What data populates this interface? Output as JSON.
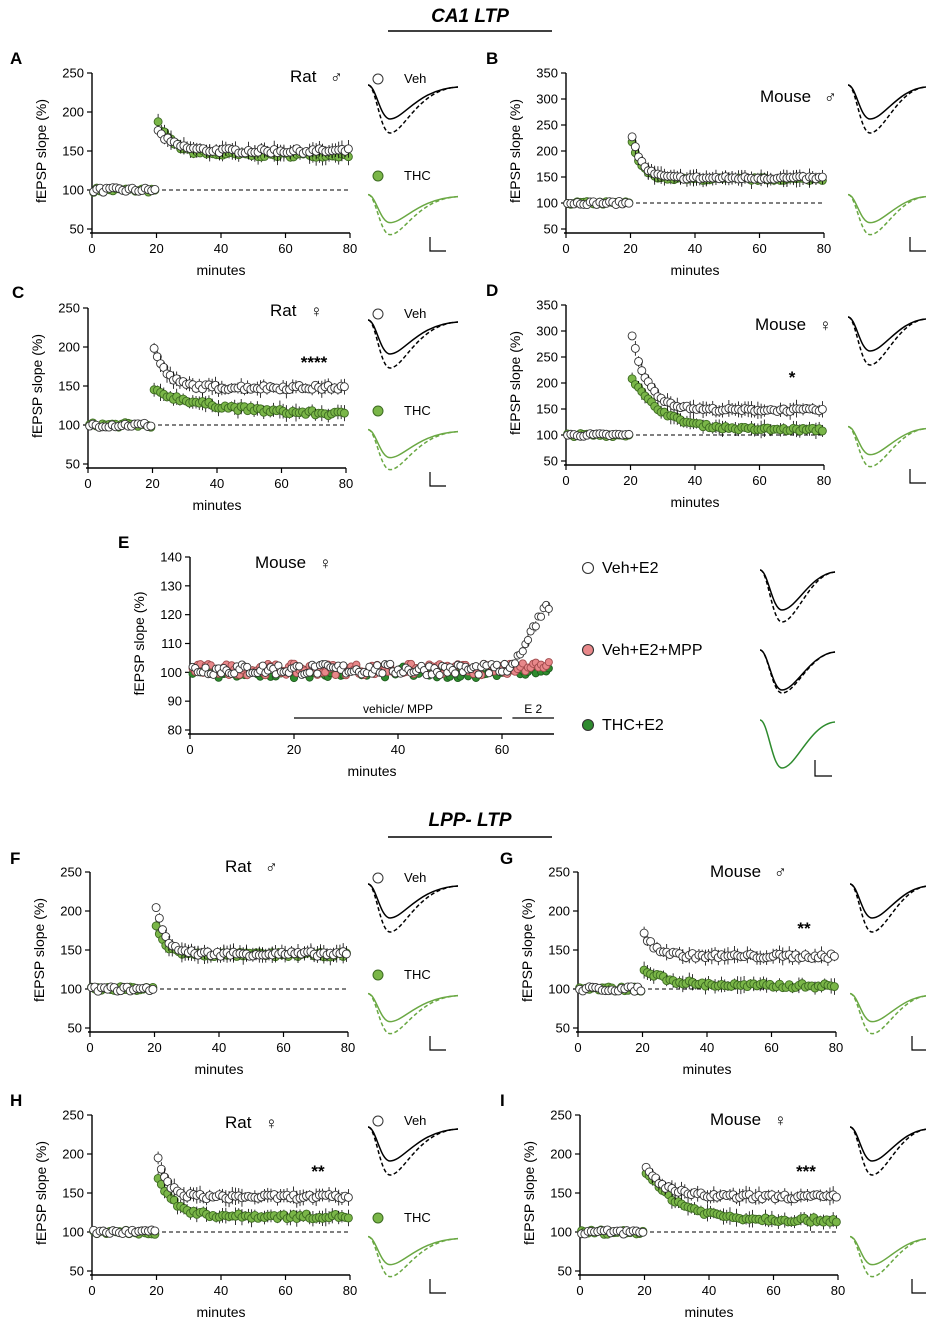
{
  "sections": [
    {
      "title": "CA1 LTP"
    },
    {
      "title": "LPP- LTP"
    }
  ],
  "colors": {
    "veh": "#ffffff",
    "thc": "#7ab648",
    "thc_dark": "#4a8a2a",
    "mpp": "#e8888a",
    "thc_e2": "#2e8b2e",
    "trace_thc": "#6aa843"
  },
  "chart_data": [
    {
      "panel": "A",
      "type": "scatter",
      "species": "Rat",
      "sex_symbol": "♂",
      "ylabel": "fEPSP slope  (%)",
      "xlabel": "minutes",
      "xlim": [
        0,
        80
      ],
      "ylim": [
        50,
        250
      ],
      "xticks": [
        0,
        20,
        40,
        60,
        80
      ],
      "yticks": [
        50,
        100,
        150,
        200,
        250
      ],
      "baseline": 100,
      "significance": "",
      "legend": [
        "Veh",
        "THC"
      ],
      "series": [
        {
          "name": "Veh",
          "color": "#ffffff",
          "baseline": 100,
          "peak": 175,
          "plateau": 150,
          "tau": 5
        },
        {
          "name": "THC",
          "color": "#7ab648",
          "baseline": 100,
          "peak": 185,
          "plateau": 145,
          "tau": 5
        }
      ]
    },
    {
      "panel": "B",
      "type": "scatter",
      "species": "Mouse",
      "sex_symbol": "♂",
      "ylabel": "fEPSP slope  (%)",
      "xlabel": "minutes",
      "xlim": [
        0,
        80
      ],
      "ylim": [
        50,
        350
      ],
      "xticks": [
        0,
        20,
        40,
        60,
        80
      ],
      "yticks": [
        50,
        100,
        150,
        200,
        250,
        300,
        350
      ],
      "baseline": 100,
      "significance": "",
      "legend": [],
      "series": [
        {
          "name": "Veh",
          "color": "#ffffff",
          "baseline": 100,
          "peak": 230,
          "plateau": 148,
          "tau": 3
        },
        {
          "name": "THC",
          "color": "#7ab648",
          "baseline": 100,
          "peak": 215,
          "plateau": 146,
          "tau": 3
        }
      ]
    },
    {
      "panel": "C",
      "type": "scatter",
      "species": "Rat",
      "sex_symbol": "♀",
      "ylabel": "fEPSP slope  (%)",
      "xlabel": "minutes",
      "xlim": [
        0,
        80
      ],
      "ylim": [
        50,
        250
      ],
      "xticks": [
        0,
        20,
        40,
        60,
        80
      ],
      "yticks": [
        50,
        100,
        150,
        200,
        250
      ],
      "baseline": 100,
      "significance": "****",
      "legend": [
        "Veh",
        "THC"
      ],
      "series": [
        {
          "name": "Veh",
          "color": "#ffffff",
          "baseline": 100,
          "peak": 198,
          "plateau": 148,
          "tau": 4
        },
        {
          "name": "THC",
          "color": "#7ab648",
          "baseline": 100,
          "peak": 143,
          "plateau": 112,
          "tau": 22
        }
      ]
    },
    {
      "panel": "D",
      "type": "scatter",
      "species": "Mouse",
      "sex_symbol": "♀",
      "ylabel": "fEPSP slope  (%)",
      "xlabel": "minutes",
      "xlim": [
        0,
        80
      ],
      "ylim": [
        50,
        350
      ],
      "xticks": [
        0,
        20,
        40,
        60,
        80
      ],
      "yticks": [
        50,
        100,
        150,
        200,
        250,
        300,
        350
      ],
      "baseline": 100,
      "significance": "*",
      "legend": [],
      "series": [
        {
          "name": "Veh",
          "color": "#ffffff",
          "baseline": 100,
          "peak": 290,
          "plateau": 148,
          "tau": 5
        },
        {
          "name": "THC",
          "color": "#7ab648",
          "baseline": 100,
          "peak": 210,
          "plateau": 110,
          "tau": 9
        }
      ]
    },
    {
      "panel": "E",
      "type": "scatter",
      "species": "Mouse",
      "sex_symbol": "♀",
      "ylabel": "fEPSP slope  (%)",
      "xlabel": "minutes",
      "xlim": [
        0,
        70
      ],
      "ylim": [
        80,
        140
      ],
      "xticks": [
        0,
        20,
        40,
        60
      ],
      "yticks": [
        80,
        90,
        100,
        110,
        120,
        130,
        140
      ],
      "baseline": null,
      "significance": "",
      "legend": [
        "Veh+E2",
        "Veh+E2+MPP",
        "THC+E2"
      ],
      "bars": [
        {
          "label": "vehicle/ MPP",
          "x0": 20,
          "x1": 60
        },
        {
          "label": "E 2",
          "x0": 62,
          "x1": 70
        }
      ],
      "series": [
        {
          "name": "Veh+E2",
          "color": "#ffffff",
          "baseline": 101,
          "final": 122,
          "rise_start": 62
        },
        {
          "name": "Veh+E2+MPP",
          "color": "#e8888a",
          "baseline": 101,
          "final": 103,
          "rise_start": 62
        },
        {
          "name": "THC+E2",
          "color": "#2e8b2e",
          "baseline": 100,
          "final": 101,
          "rise_start": 62
        }
      ]
    },
    {
      "panel": "F",
      "type": "scatter",
      "species": "Rat",
      "sex_symbol": "♂",
      "ylabel": "fEPSP slope  (%)",
      "xlabel": "minutes",
      "xlim": [
        0,
        80
      ],
      "ylim": [
        50,
        250
      ],
      "xticks": [
        0,
        20,
        40,
        60,
        80
      ],
      "yticks": [
        50,
        100,
        150,
        200,
        250
      ],
      "baseline": 100,
      "significance": "",
      "legend": [
        "Veh",
        "THC"
      ],
      "series": [
        {
          "name": "Veh",
          "color": "#ffffff",
          "baseline": 100,
          "peak": 205,
          "plateau": 145,
          "tau": 3
        },
        {
          "name": "THC",
          "color": "#7ab648",
          "baseline": 100,
          "peak": 180,
          "plateau": 144,
          "tau": 3
        }
      ]
    },
    {
      "panel": "G",
      "type": "scatter",
      "species": "Mouse",
      "sex_symbol": "♂",
      "ylabel": "fEPSP slope  (%)",
      "xlabel": "minutes",
      "xlim": [
        0,
        80
      ],
      "ylim": [
        50,
        250
      ],
      "xticks": [
        0,
        20,
        40,
        60,
        80
      ],
      "yticks": [
        50,
        100,
        150,
        200,
        250
      ],
      "baseline": 100,
      "significance": "**",
      "legend": [],
      "series": [
        {
          "name": "Veh",
          "color": "#ffffff",
          "baseline": 100,
          "peak": 170,
          "plateau": 142,
          "tau": 4
        },
        {
          "name": "THC",
          "color": "#7ab648",
          "baseline": 100,
          "peak": 125,
          "plateau": 104,
          "tau": 8
        }
      ]
    },
    {
      "panel": "H",
      "type": "scatter",
      "species": "Rat",
      "sex_symbol": "♀",
      "ylabel": "fEPSP slope  (%)",
      "xlabel": "minutes",
      "xlim": [
        0,
        80
      ],
      "ylim": [
        50,
        250
      ],
      "xticks": [
        0,
        20,
        40,
        60,
        80
      ],
      "yticks": [
        50,
        100,
        150,
        200,
        250
      ],
      "baseline": 100,
      "significance": "**",
      "legend": [
        "Veh",
        "THC"
      ],
      "series": [
        {
          "name": "Veh",
          "color": "#ffffff",
          "baseline": 100,
          "peak": 195,
          "plateau": 145,
          "tau": 3
        },
        {
          "name": "THC",
          "color": "#7ab648",
          "baseline": 100,
          "peak": 170,
          "plateau": 120,
          "tau": 5
        }
      ]
    },
    {
      "panel": "I",
      "type": "scatter",
      "species": "Mouse",
      "sex_symbol": "♀",
      "ylabel": "fEPSP slope  (%)",
      "xlabel": "minutes",
      "xlim": [
        0,
        80
      ],
      "ylim": [
        50,
        250
      ],
      "xticks": [
        0,
        20,
        40,
        60,
        80
      ],
      "yticks": [
        50,
        100,
        150,
        200,
        250
      ],
      "baseline": 100,
      "significance": "***",
      "legend": [],
      "series": [
        {
          "name": "Veh",
          "color": "#ffffff",
          "baseline": 100,
          "peak": 182,
          "plateau": 145,
          "tau": 6
        },
        {
          "name": "THC",
          "color": "#7ab648",
          "baseline": 100,
          "peak": 178,
          "plateau": 115,
          "tau": 10
        }
      ]
    }
  ]
}
